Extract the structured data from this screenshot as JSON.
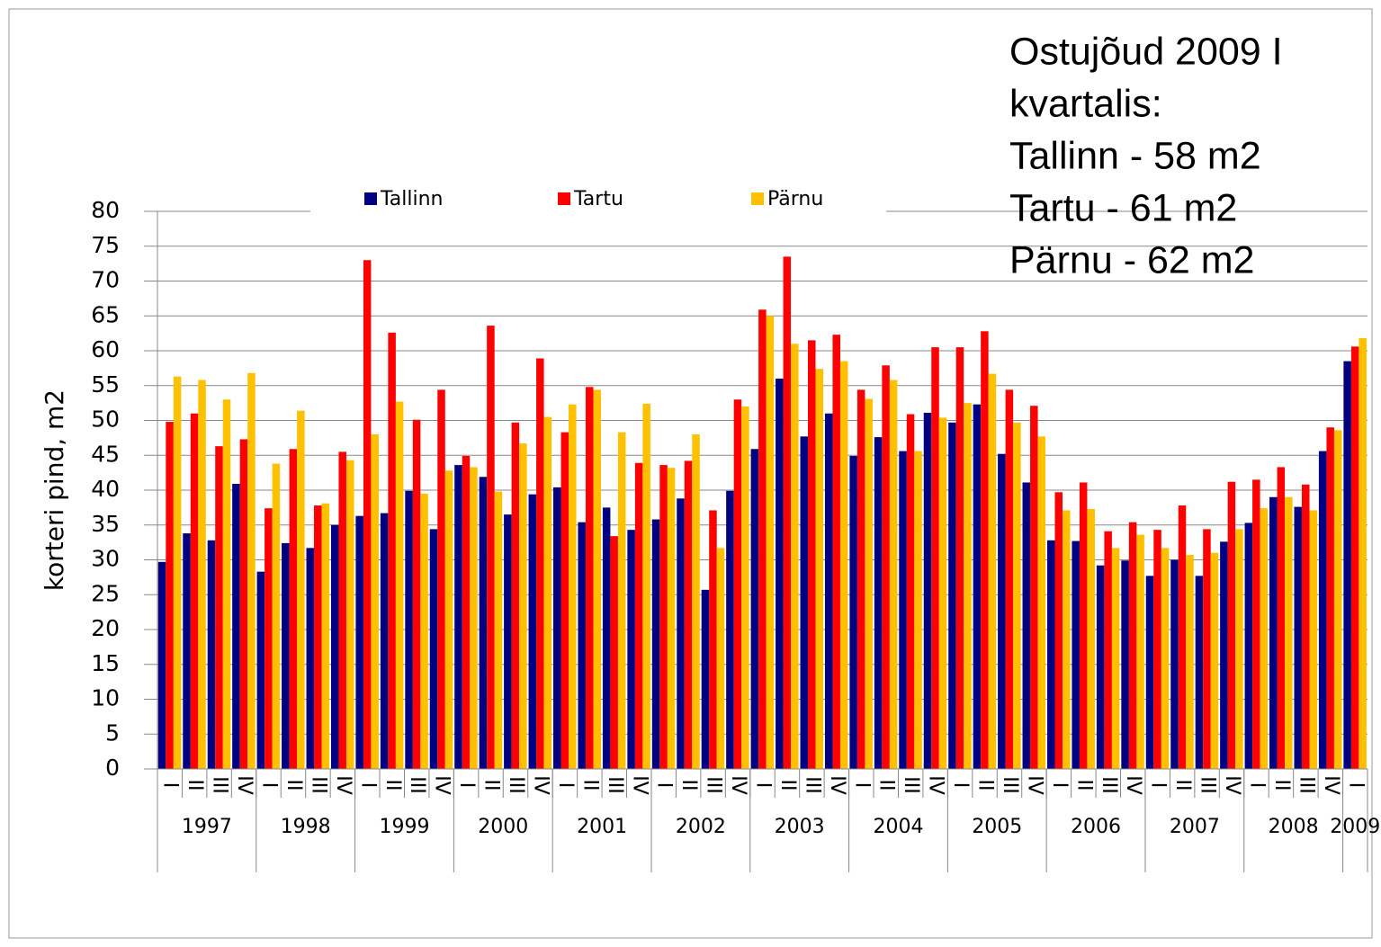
{
  "chart_data": {
    "type": "bar",
    "ylabel": "korteri pind, m2",
    "annotation": [
      "Ostujõud 2009 I",
      "kvartalis:",
      "Tallinn - 58 m2",
      "Tartu - 61 m2",
      "Pärnu - 62 m2"
    ],
    "categories": [
      "I",
      "II",
      "III",
      "IV",
      "I",
      "II",
      "III",
      "IV",
      "I",
      "II",
      "III",
      "IV",
      "I",
      "II",
      "III",
      "IV",
      "I",
      "II",
      "III",
      "IV",
      "I",
      "II",
      "III",
      "IV",
      "I",
      "II",
      "III",
      "IV",
      "I",
      "II",
      "III",
      "IV",
      "I",
      "II",
      "III",
      "IV",
      "I",
      "II",
      "III",
      "IV",
      "I",
      "II",
      "III",
      "IV",
      "I",
      "II",
      "III",
      "IV",
      "I"
    ],
    "category_groups": [
      "1997",
      null,
      null,
      null,
      "1998",
      null,
      null,
      null,
      "1999",
      null,
      null,
      null,
      "2000",
      null,
      null,
      null,
      "2001",
      null,
      null,
      null,
      "2002",
      null,
      null,
      null,
      "2003",
      null,
      null,
      null,
      "2004",
      null,
      null,
      null,
      "2005",
      null,
      null,
      null,
      "2006",
      null,
      null,
      null,
      "2007",
      null,
      null,
      null,
      "2008",
      null,
      null,
      null,
      "2009"
    ],
    "series": [
      {
        "name": "Tallinn",
        "color": "#000080",
        "values": [
          29.7,
          33.8,
          32.8,
          40.9,
          28.3,
          32.4,
          31.7,
          35.0,
          36.3,
          36.7,
          39.9,
          34.4,
          43.6,
          41.9,
          36.5,
          39.4,
          40.4,
          35.4,
          37.5,
          34.3,
          35.8,
          38.8,
          25.7,
          39.9,
          45.9,
          56.0,
          47.7,
          51.0,
          44.9,
          47.6,
          45.6,
          51.1,
          49.7,
          52.3,
          45.2,
          41.1,
          32.8,
          32.7,
          29.2,
          29.9,
          27.7,
          30.0,
          27.7,
          32.6,
          35.3,
          39.0,
          37.6,
          45.6,
          58.5
        ]
      },
      {
        "name": "Tartu",
        "color": "#ff0000",
        "values": [
          49.8,
          51.0,
          46.3,
          47.3,
          37.4,
          45.9,
          37.8,
          45.5,
          73.0,
          62.6,
          50.1,
          54.4,
          44.9,
          63.6,
          49.7,
          58.9,
          48.3,
          54.8,
          33.4,
          43.9,
          43.6,
          44.2,
          37.1,
          53.0,
          65.9,
          73.5,
          61.5,
          62.3,
          54.4,
          57.9,
          50.9,
          60.5,
          60.5,
          62.8,
          54.4,
          52.1,
          39.7,
          41.1,
          34.1,
          35.4,
          34.3,
          37.8,
          34.4,
          41.2,
          41.5,
          43.3,
          40.8,
          49.0,
          60.6
        ]
      },
      {
        "name": "Pärnu",
        "color": "#ffc000",
        "values": [
          56.3,
          55.8,
          53.0,
          56.8,
          43.8,
          51.4,
          38.1,
          44.3,
          48.0,
          52.7,
          39.5,
          42.8,
          43.3,
          39.8,
          46.7,
          50.5,
          52.3,
          54.4,
          48.3,
          52.4,
          43.2,
          48.0,
          31.7,
          52.0,
          65.0,
          61.0,
          57.4,
          58.5,
          53.1,
          55.8,
          45.6,
          50.4,
          52.5,
          56.7,
          49.7,
          47.7,
          37.1,
          37.3,
          31.7,
          33.6,
          31.7,
          30.7,
          31.0,
          34.4,
          37.4,
          39.0,
          37.1,
          48.6,
          61.8
        ]
      }
    ],
    "ylim": [
      0,
      80
    ],
    "yticks": [
      0,
      5,
      10,
      15,
      20,
      25,
      30,
      35,
      40,
      45,
      50,
      55,
      60,
      65,
      70,
      75,
      80
    ],
    "grid": true
  }
}
